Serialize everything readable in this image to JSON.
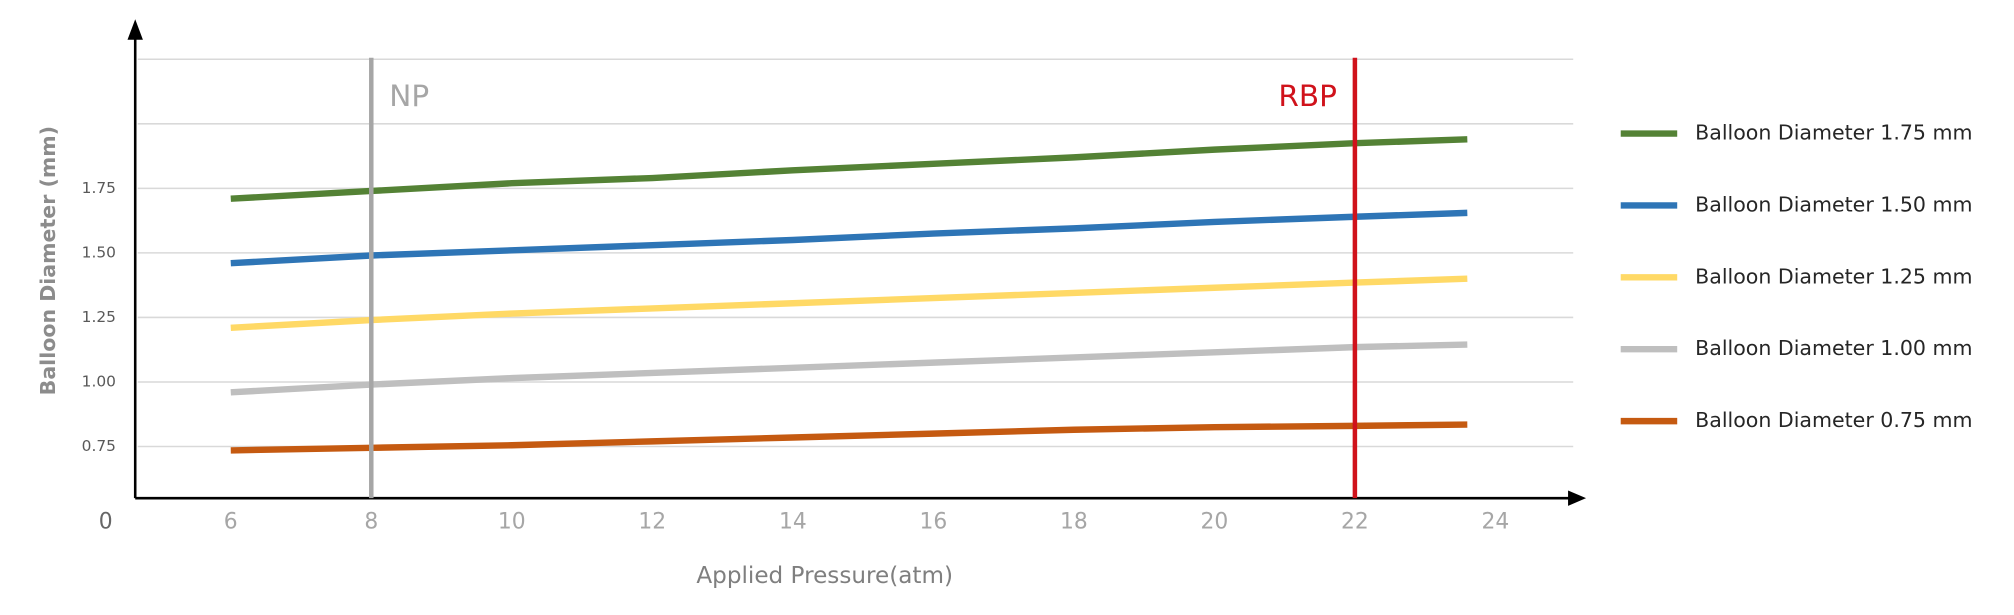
{
  "chart_data": {
    "type": "line",
    "x_label": "Applied Pressure(atm)",
    "y_label": "Balloon Diameter (mm)",
    "origin_label": "0",
    "x": [
      6,
      8,
      10,
      12,
      14,
      16,
      18,
      20,
      22,
      23.6
    ],
    "xlim": [
      4.64,
      25.29
    ],
    "xticks": [
      6,
      8,
      10,
      12,
      14,
      16,
      18,
      20,
      22,
      24
    ],
    "ylim": [
      0.55,
      2.405
    ],
    "yticks": [
      {
        "value": 0.75,
        "label": "0.75"
      },
      {
        "value": 1,
        "label": "1.00"
      },
      {
        "value": 1.25,
        "label": "1.25"
      },
      {
        "value": 1.5,
        "label": "1.50"
      },
      {
        "value": 1.75,
        "label": "1.75"
      }
    ],
    "ygrid_extra": [
      2,
      2.25
    ],
    "grid": true,
    "legend": "right",
    "annotations": [
      {
        "x": 8,
        "label": "NP",
        "color": "#a6a6a6"
      },
      {
        "x": 22,
        "label": "RBP",
        "color": "#d0121b"
      }
    ],
    "series": [
      {
        "name": "Balloon Diameter 1.75 mm",
        "color": "#548235",
        "values": [
          1.71,
          1.74,
          1.77,
          1.79,
          1.82,
          1.845,
          1.87,
          1.9,
          1.925,
          1.94
        ]
      },
      {
        "name": "Balloon Diameter 1.50 mm",
        "color": "#2e75b6",
        "values": [
          1.46,
          1.49,
          1.51,
          1.53,
          1.55,
          1.575,
          1.595,
          1.62,
          1.64,
          1.655
        ]
      },
      {
        "name": "Balloon Diameter 1.25 mm",
        "color": "#ffd966",
        "values": [
          1.21,
          1.24,
          1.265,
          1.285,
          1.305,
          1.325,
          1.345,
          1.365,
          1.385,
          1.4
        ]
      },
      {
        "name": "Balloon Diameter 1.00 mm",
        "color": "#bfbfbf",
        "values": [
          0.96,
          0.99,
          1.015,
          1.035,
          1.055,
          1.075,
          1.095,
          1.115,
          1.135,
          1.145
        ]
      },
      {
        "name": "Balloon Diameter 0.75 mm",
        "color": "#c55a11",
        "values": [
          0.735,
          0.745,
          0.755,
          0.77,
          0.785,
          0.8,
          0.815,
          0.825,
          0.83,
          0.835
        ]
      }
    ]
  }
}
